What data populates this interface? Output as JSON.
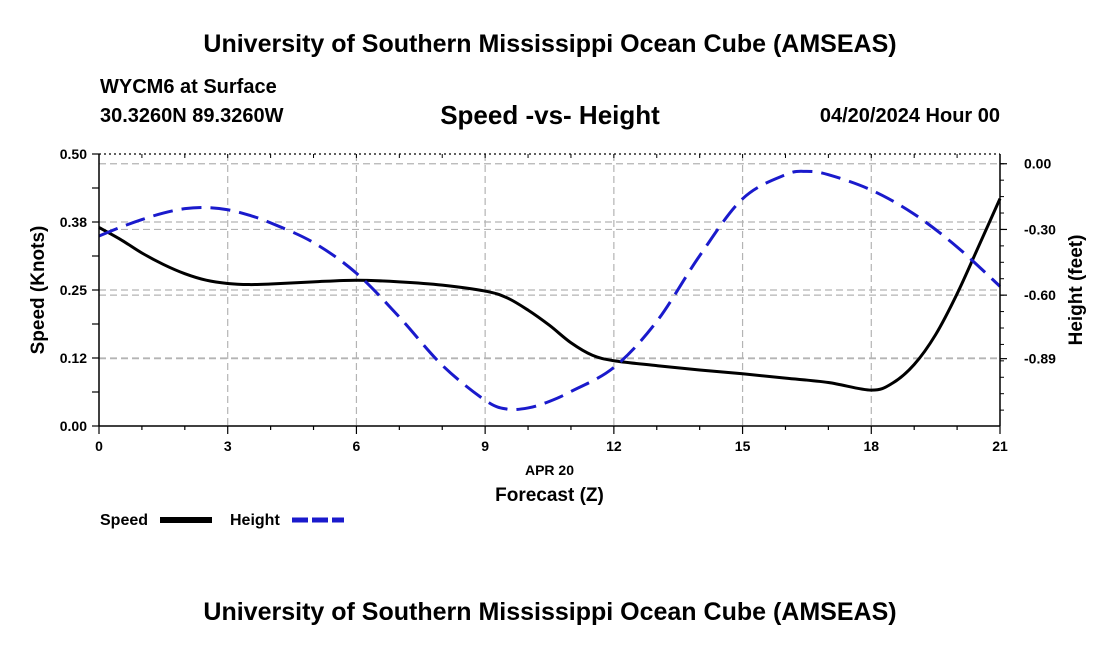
{
  "header": {
    "title": "University of Southern Mississippi Ocean Cube (AMSEAS)",
    "station": "WYCM6 at Surface",
    "coords": "30.3260N  89.3260W",
    "chart_title": "Speed -vs- Height",
    "datetime": "04/20/2024 Hour 00"
  },
  "footer": {
    "title": "University of Southern Mississippi Ocean Cube (AMSEAS)"
  },
  "colors": {
    "speed": "#000000",
    "height": "#1a1acc",
    "grid": "#b4b4b4"
  },
  "chart_data": {
    "type": "line",
    "title": "Speed -vs- Height",
    "xlabel": "Forecast (Z)",
    "xlabel_date": "APR 20",
    "ylabel": "Speed (Knots)",
    "y2label": "Height (feet)",
    "x_ticks": [
      0,
      3,
      6,
      9,
      12,
      15,
      18,
      21
    ],
    "xlim": [
      0,
      21
    ],
    "ylim": [
      0,
      0.5
    ],
    "y_ticks": [
      0,
      0.125,
      0.25,
      0.375,
      0.5
    ],
    "y_tick_labels": [
      "0.00",
      "0.12",
      "0.25",
      "0.38",
      "0.50"
    ],
    "y2lim": [
      -1.1975,
      0.0445
    ],
    "y2_ticks": [
      0.0,
      -0.3,
      -0.6,
      -0.89
    ],
    "y2_tick_labels": [
      "0.00",
      "-0.30",
      "-0.60",
      "-0.89"
    ],
    "grid": true,
    "legend": [
      "Speed",
      "Height"
    ],
    "legend_position": "bottom-left",
    "series": [
      {
        "name": "Speed",
        "axis": "left",
        "style": "solid",
        "x": [
          0,
          0.5,
          1,
          1.5,
          2,
          2.5,
          3,
          3.5,
          4,
          5,
          6,
          7,
          8,
          9,
          9.5,
          10,
          10.5,
          11,
          11.5,
          12,
          13,
          14,
          15,
          16,
          17,
          18,
          18.5,
          19,
          19.5,
          20,
          20.5,
          21
        ],
        "y": [
          0.365,
          0.343,
          0.318,
          0.297,
          0.28,
          0.268,
          0.262,
          0.26,
          0.261,
          0.265,
          0.268,
          0.265,
          0.259,
          0.248,
          0.236,
          0.213,
          0.185,
          0.153,
          0.13,
          0.12,
          0.111,
          0.103,
          0.096,
          0.088,
          0.08,
          0.066,
          0.079,
          0.113,
          0.168,
          0.243,
          0.33,
          0.418
        ]
      },
      {
        "name": "Height",
        "axis": "right",
        "style": "dashed",
        "x": [
          0,
          0.5,
          1,
          1.5,
          2,
          2.5,
          3,
          3.5,
          4,
          5,
          6,
          7,
          8,
          9,
          9.5,
          10,
          10.5,
          11,
          12,
          13,
          14,
          15,
          16,
          16.5,
          17,
          18,
          19,
          20,
          21
        ],
        "y": [
          -0.33,
          -0.29,
          -0.255,
          -0.225,
          -0.205,
          -0.2,
          -0.21,
          -0.235,
          -0.27,
          -0.36,
          -0.5,
          -0.7,
          -0.92,
          -1.08,
          -1.12,
          -1.115,
          -1.085,
          -1.04,
          -0.93,
          -0.72,
          -0.42,
          -0.16,
          -0.05,
          -0.035,
          -0.05,
          -0.12,
          -0.23,
          -0.38,
          -0.56
        ]
      }
    ]
  }
}
